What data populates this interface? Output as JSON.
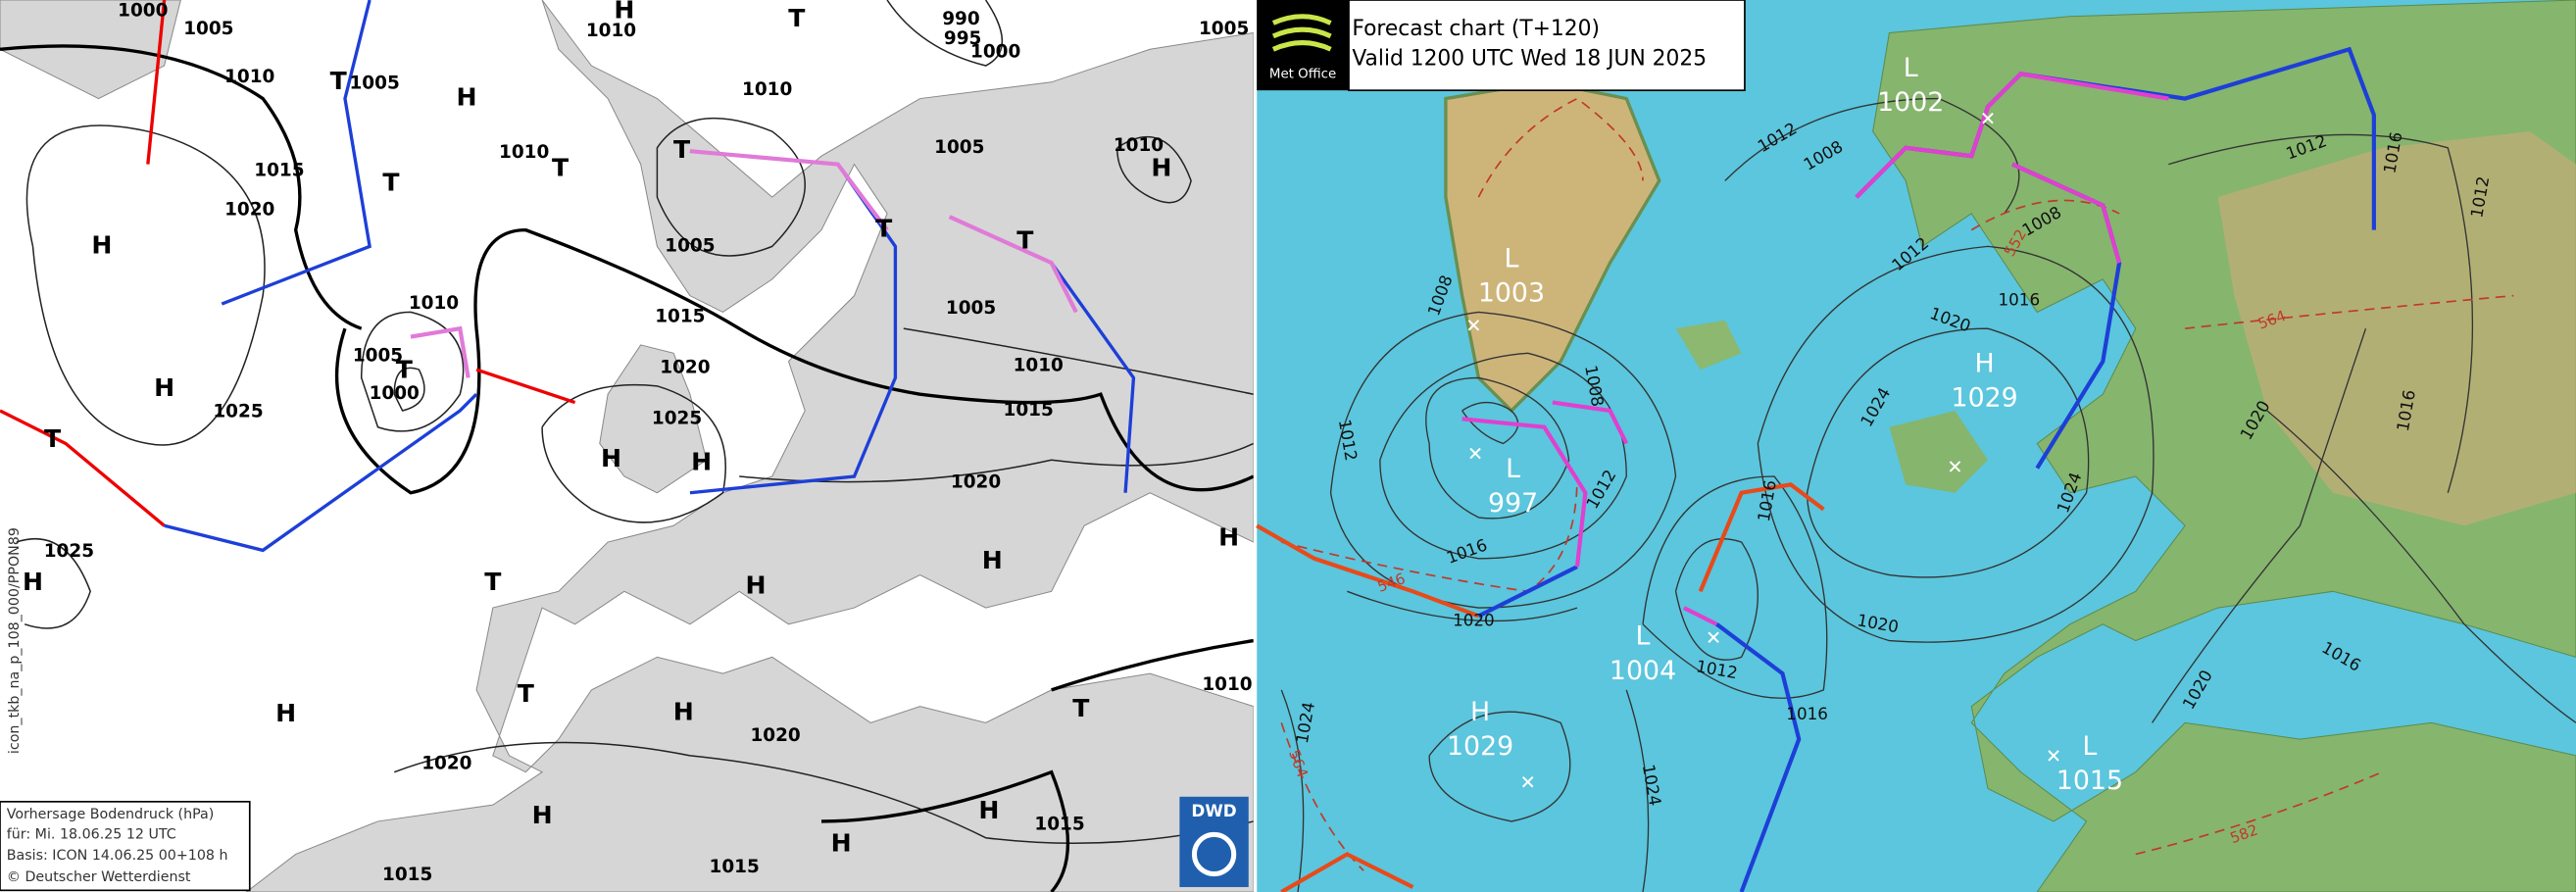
{
  "left_map": {
    "labels": [
      "1000",
      "1005",
      "1010",
      "1005",
      "H",
      "T",
      "1015",
      "1020",
      "T",
      "H",
      "1010",
      "1005",
      "T",
      "1000",
      "H",
      "1025",
      "T",
      "1025",
      "H",
      "1010",
      "H",
      "T",
      "990",
      "995",
      "1000",
      "1005",
      "1010",
      "1010",
      "T",
      "T",
      "1005",
      "1010",
      "H",
      "1005",
      "T",
      "T",
      "1005",
      "1015",
      "1020",
      "1010",
      "1015",
      "1025",
      "H",
      "H",
      "1020",
      "H",
      "H",
      "T",
      "H",
      "T",
      "H",
      "H",
      "1020",
      "T",
      "1010",
      "1020",
      "H",
      "H",
      "1015",
      "H",
      "1015",
      "1015"
    ],
    "side_label": "icon_tkb_na_p_108_000/PPON89",
    "legend": {
      "title": "Vorhersage Bodendruck (hPa)",
      "valid": "für:  Mi. 18.06.25  12 UTC",
      "basis": "Basis: ICON  14.06.25 00+108 h",
      "credit": "© Deutscher Wetterdienst"
    },
    "logo": "DWD"
  },
  "right_map": {
    "header": {
      "title": "Forecast chart (T+120)",
      "valid": "Valid 1200 UTC Wed 18 JUN 2025"
    },
    "logo": "Met Office",
    "centers": [
      {
        "type": "L",
        "value": "1002"
      },
      {
        "type": "L",
        "value": "1003"
      },
      {
        "type": "L",
        "value": "997"
      },
      {
        "type": "H",
        "value": "1029"
      },
      {
        "type": "L",
        "value": "1004"
      },
      {
        "type": "H",
        "value": "1029"
      },
      {
        "type": "L",
        "value": "1015"
      }
    ],
    "isobar_labels": [
      "1012",
      "1008",
      "1012",
      "1008",
      "1008",
      "1012",
      "1012",
      "1016",
      "1020",
      "1016",
      "1012",
      "1016",
      "1020",
      "1024",
      "1020",
      "1016",
      "1012",
      "1008",
      "1024",
      "1020",
      "1016",
      "1012",
      "1016",
      "1016",
      "1020",
      "1024",
      "1024"
    ],
    "thickness_labels": [
      "546",
      "552",
      "564",
      "564",
      "582"
    ]
  }
}
